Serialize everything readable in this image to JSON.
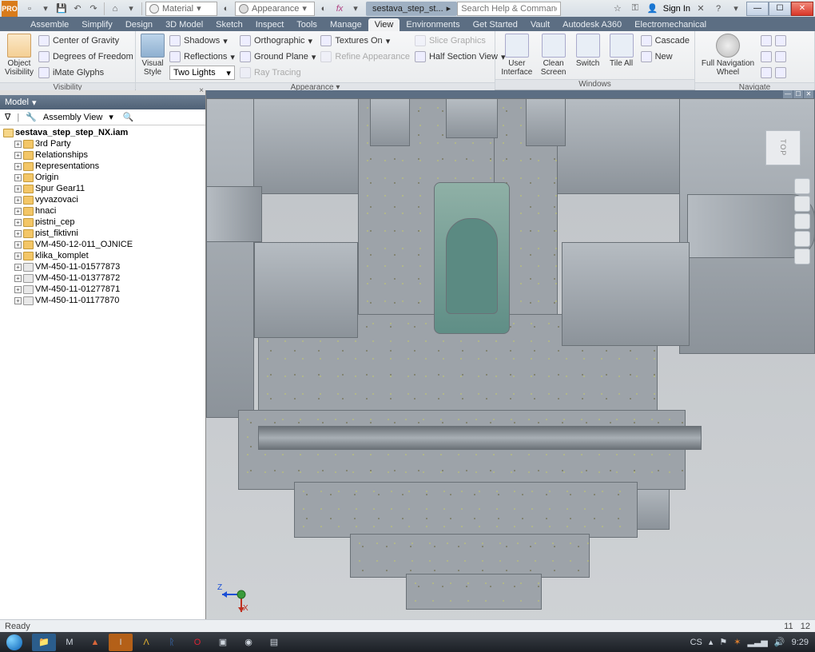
{
  "app": {
    "pro_badge": "PRO"
  },
  "qat": {
    "material_label": "Material",
    "appearance_label": "Appearance"
  },
  "doc_tab": "sestava_step_st...",
  "search_placeholder": "Search Help & Commands...",
  "signin": "Sign In",
  "ribbon_tabs": [
    "Assemble",
    "Simplify",
    "Design",
    "3D Model",
    "Sketch",
    "Inspect",
    "Tools",
    "Manage",
    "View",
    "Environments",
    "Get Started",
    "Vault",
    "Autodesk A360",
    "Electromechanical"
  ],
  "active_tab_index": 8,
  "ribbon": {
    "visibility": {
      "object_visibility": "Object Visibility",
      "center_of_gravity": "Center of Gravity",
      "degrees_of_freedom": "Degrees of Freedom",
      "imate_glyphs": "iMate Glyphs",
      "panel": "Visibility"
    },
    "appearance": {
      "visual_style": "Visual Style",
      "shadows": "Shadows",
      "reflections": "Reflections",
      "two_lights": "Two Lights",
      "orthographic": "Orthographic",
      "ground_plane": "Ground Plane",
      "ray_tracing": "Ray Tracing",
      "textures_on": "Textures On",
      "refine_appearance": "Refine Appearance",
      "slice_graphics": "Slice Graphics",
      "half_section": "Half Section View",
      "panel": "Appearance"
    },
    "windows": {
      "user_interface": "User Interface",
      "clean_screen": "Clean Screen",
      "switch": "Switch",
      "tile_all": "Tile All",
      "cascade": "Cascade",
      "new": "New",
      "panel": "Windows"
    },
    "navigate": {
      "full_nav_wheel": "Full Navigation Wheel",
      "panel": "Navigate"
    }
  },
  "model_panel": {
    "title": "Model",
    "assembly_view": "Assembly View",
    "root": "sestava_step_step_NX.iam",
    "nodes": [
      {
        "label": "3rd Party",
        "icon": "grey"
      },
      {
        "label": "Relationships",
        "icon": "folder"
      },
      {
        "label": "Representations",
        "icon": "rep"
      },
      {
        "label": "Origin",
        "icon": "folder"
      },
      {
        "label": "Spur Gear11",
        "icon": "folder"
      },
      {
        "label": "vyvazovaci",
        "icon": "folder"
      },
      {
        "label": "hnaci",
        "icon": "folder"
      },
      {
        "label": "pistni_cep",
        "icon": "folder"
      },
      {
        "label": "pist_fiktivni",
        "icon": "folder"
      },
      {
        "label": "VM-450-12-011_OJNICE",
        "icon": "folder"
      },
      {
        "label": "klika_komplet",
        "icon": "folder"
      },
      {
        "label": "VM-450-11-01577873",
        "icon": "part"
      },
      {
        "label": "VM-450-11-01377872",
        "icon": "part"
      },
      {
        "label": "VM-450-11-01277871",
        "icon": "part"
      },
      {
        "label": "VM-450-11-01177870",
        "icon": "part"
      }
    ]
  },
  "viewport": {
    "viewcube_face": "TOP",
    "axis_z": "Z",
    "axis_x": "X",
    "colors": {
      "bg_top": "#bfc3c7",
      "bg_bottom": "#cfd2d5",
      "metal": "#8b9298",
      "metal_edge": "#6a7177",
      "hatch_bg": "#9da3a9",
      "inner_green": "#6d9c93"
    }
  },
  "status": {
    "ready": "Ready",
    "num1": "11",
    "num2": "12"
  },
  "taskbar": {
    "lang": "CS",
    "clock": "9:29",
    "tray_icons": [
      "▲",
      "✳",
      "✦",
      "📶",
      "🔊"
    ]
  }
}
